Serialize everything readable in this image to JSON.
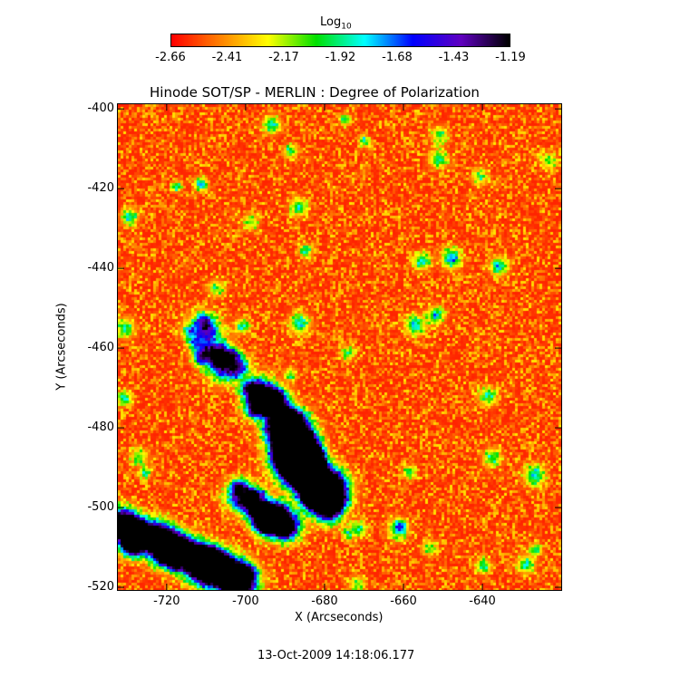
{
  "chart_data": {
    "type": "heatmap",
    "title": "Hinode SOT/SP - MERLIN : Degree of Polarization",
    "xlabel": "X (Arcseconds)",
    "ylabel": "Y (Arcseconds)",
    "xlim": [
      -732.6,
      -619.8
    ],
    "ylim": [
      -520.9,
      -398.6
    ],
    "xticks": [
      -720,
      -700,
      -680,
      -660,
      -640
    ],
    "yticks": [
      -400,
      -420,
      -440,
      -460,
      -480,
      -500,
      -520
    ],
    "colorbar": {
      "title": "Log",
      "title_subscript": "10",
      "ticks": [
        "-2.66",
        "-2.41",
        "-2.17",
        "-1.92",
        "-1.68",
        "-1.43",
        "-1.19"
      ],
      "range": [
        -2.66,
        -1.19
      ],
      "colormap": [
        "#ff0000",
        "#ff8000",
        "#ffff00",
        "#00e000",
        "#00ffff",
        "#0000ff",
        "#6000c0",
        "#000000"
      ]
    }
  },
  "footer": {
    "timestamp": "13-Oct-2009 14:18:06.177"
  }
}
